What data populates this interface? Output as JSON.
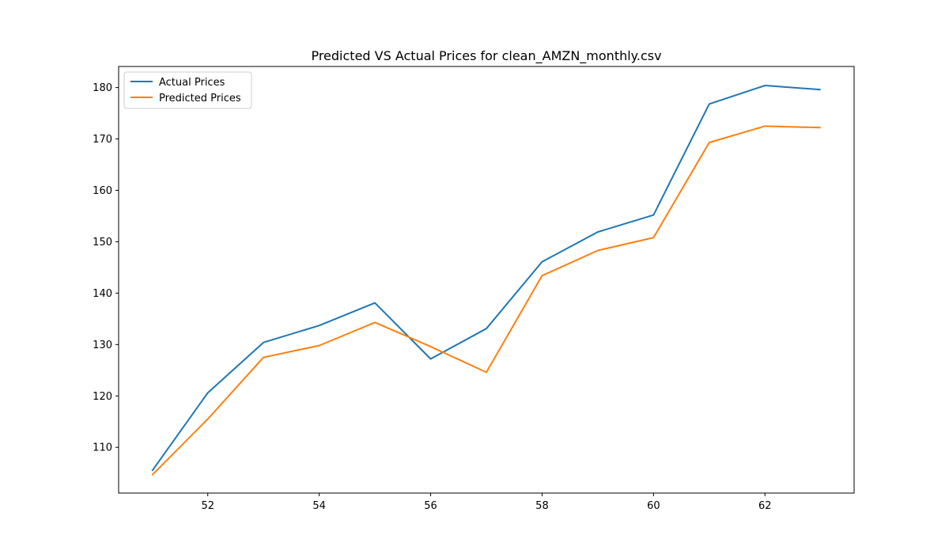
{
  "chart_data": {
    "type": "line",
    "title": "Predicted VS Actual Prices for clean_AMZN_monthly.csv",
    "xlabel": "",
    "ylabel": "",
    "x": [
      51,
      52,
      53,
      54,
      55,
      56,
      57,
      58,
      59,
      60,
      61,
      62,
      63
    ],
    "xlim": [
      50.4,
      63.6
    ],
    "ylim": [
      101.1,
      184.1
    ],
    "xticks": [
      52,
      54,
      56,
      58,
      60,
      62
    ],
    "yticks": [
      110,
      120,
      130,
      140,
      150,
      160,
      170,
      180
    ],
    "grid": false,
    "legend_position": "top-left",
    "series": [
      {
        "name": "Actual Prices",
        "color": "#1f77b4",
        "values": [
          105.4,
          120.6,
          130.4,
          133.7,
          138.1,
          127.2,
          133.1,
          146.1,
          151.9,
          155.2,
          176.8,
          180.4,
          179.6
        ]
      },
      {
        "name": "Predicted Prices",
        "color": "#ff7f0e",
        "values": [
          104.6,
          115.5,
          127.5,
          129.8,
          134.3,
          129.6,
          124.6,
          143.4,
          148.3,
          150.8,
          169.3,
          172.5,
          172.2
        ]
      }
    ]
  }
}
